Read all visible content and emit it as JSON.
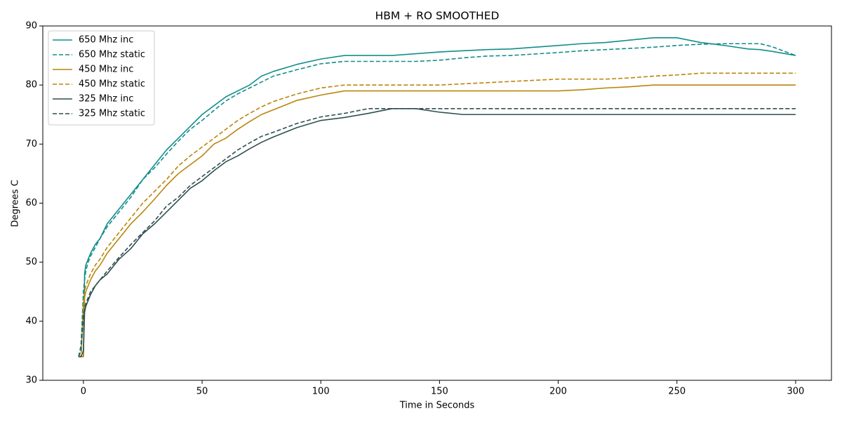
{
  "chart_data": {
    "type": "line",
    "title": "HBM + RO SMOOTHED",
    "x_label": "Time in Seconds",
    "y_label": "Degrees C",
    "x": [
      -2,
      -1,
      0,
      0.5,
      1,
      2,
      3,
      5,
      7,
      10,
      15,
      20,
      25,
      30,
      35,
      40,
      45,
      50,
      55,
      60,
      65,
      70,
      75,
      80,
      90,
      100,
      110,
      120,
      130,
      140,
      150,
      160,
      170,
      180,
      200,
      210,
      220,
      230,
      240,
      250,
      260,
      270,
      280,
      285,
      290,
      300
    ],
    "series": [
      {
        "name": "650 Mhz inc",
        "color": "#138d8a",
        "linestyle": "solid",
        "values": [
          34,
          34,
          34,
          48,
          49.5,
          50.5,
          51.5,
          53,
          54,
          56.5,
          59,
          61.5,
          64,
          66.5,
          69,
          71,
          73,
          75,
          76.5,
          78,
          79,
          80,
          81.5,
          82.3,
          83.5,
          84.4,
          85,
          85,
          85,
          85.3,
          85.6,
          85.8,
          86,
          86.1,
          86.7,
          87,
          87.2,
          87.6,
          88,
          88,
          87.2,
          86.7,
          86.1,
          86,
          85.7,
          85
        ]
      },
      {
        "name": "650 Mhz static",
        "color": "#138d8a",
        "linestyle": "dashed",
        "values": [
          34,
          36,
          45,
          47,
          48.5,
          50,
          51,
          52.5,
          54,
          56,
          58.5,
          61,
          64,
          66,
          68.3,
          70.5,
          72.5,
          74,
          75.7,
          77.3,
          78.5,
          79.5,
          80.5,
          81.5,
          82.6,
          83.6,
          84,
          84,
          84,
          84,
          84.2,
          84.6,
          84.9,
          85,
          85.5,
          85.8,
          86,
          86.2,
          86.4,
          86.7,
          86.9,
          87,
          87,
          87,
          86.5,
          85
        ]
      },
      {
        "name": "450 Mhz inc",
        "color": "#b8860b",
        "linestyle": "solid",
        "values": [
          34,
          34,
          34,
          44,
          45,
          46,
          47,
          48.5,
          49.5,
          51.5,
          54,
          56.5,
          58.5,
          60.7,
          63,
          65,
          66.5,
          68,
          70,
          71,
          72.5,
          73.8,
          75,
          75.8,
          77.4,
          78.3,
          79,
          79,
          79,
          79,
          79,
          79,
          79,
          79,
          79,
          79.2,
          79.5,
          79.7,
          80,
          80,
          80,
          80,
          80,
          80,
          80,
          80
        ]
      },
      {
        "name": "450 Mhz static",
        "color": "#b8860b",
        "linestyle": "dashed",
        "values": [
          34,
          34,
          43,
          45,
          46,
          47,
          48,
          49.5,
          50.5,
          52.5,
          55,
          57.5,
          60,
          62,
          64,
          66.3,
          68,
          69.5,
          71,
          72.5,
          74,
          75.2,
          76.3,
          77.2,
          78.5,
          79.5,
          80,
          80,
          80,
          80,
          80,
          80.2,
          80.4,
          80.6,
          81,
          81,
          81,
          81.2,
          81.5,
          81.7,
          82,
          82,
          82,
          82,
          82,
          82
        ]
      },
      {
        "name": "325 Mhz inc",
        "color": "#2f4f4f",
        "linestyle": "solid",
        "values": [
          34,
          34,
          35,
          41.5,
          42.5,
          43.5,
          44.5,
          46,
          47,
          48,
          50.5,
          52.3,
          54.8,
          56.5,
          58.5,
          60.5,
          62.5,
          63.8,
          65.5,
          67,
          68,
          69.2,
          70.3,
          71.2,
          72.8,
          74,
          74.5,
          75.2,
          76,
          76,
          75.4,
          75,
          75,
          75,
          75,
          75,
          75,
          75,
          75,
          75,
          75,
          75,
          75,
          75,
          75,
          75
        ]
      },
      {
        "name": "325 Mhz static",
        "color": "#2f4f4f",
        "linestyle": "dashed",
        "values": [
          34,
          35,
          41,
          42,
          43,
          44,
          45,
          46,
          47,
          48.5,
          50.8,
          53,
          55,
          57,
          59.5,
          61,
          63,
          64.5,
          66,
          67.5,
          69,
          70.2,
          71.3,
          72,
          73.5,
          74.6,
          75.2,
          76,
          76,
          76,
          76,
          76,
          76,
          76,
          76,
          76,
          76,
          76,
          76,
          76,
          76,
          76,
          76,
          76,
          76,
          76
        ]
      }
    ],
    "xlim": [
      -17.1,
      315.1
    ],
    "ylim": [
      30,
      90
    ],
    "xticks": [
      0,
      50,
      100,
      150,
      200,
      250,
      300
    ],
    "yticks": [
      30,
      40,
      50,
      60,
      70,
      80,
      90
    ],
    "grid": false,
    "legend": "upper left"
  }
}
